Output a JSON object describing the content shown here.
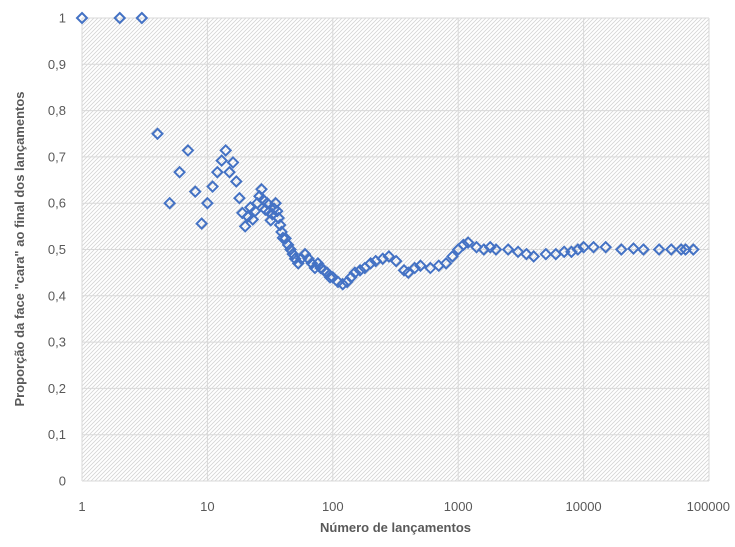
{
  "chart_data": {
    "type": "scatter",
    "xlabel": "Número de lançamentos",
    "ylabel": "Proporção da face \"cara\" ao final dos lançamentos",
    "xscale": "log",
    "xlim": [
      1,
      100000
    ],
    "ylim": [
      0,
      1
    ],
    "x_ticks": [
      "1",
      "10",
      "100",
      "1000",
      "10000",
      "100000"
    ],
    "y_ticks": [
      "0",
      "0,1",
      "0,2",
      "0,3",
      "0,4",
      "0,5",
      "0,6",
      "0,7",
      "0,8",
      "0,9",
      "1"
    ],
    "grid": true,
    "marker": "diamond-open",
    "colors": {
      "marker": "#4472C4",
      "grid": "#d9d9d9",
      "hatch": "#d4d4d4"
    },
    "series": [
      {
        "points": [
          [
            1,
            1
          ],
          [
            2,
            1
          ],
          [
            3,
            1
          ],
          [
            4,
            0.75
          ],
          [
            5,
            0.6
          ],
          [
            6,
            0.667
          ],
          [
            7,
            0.714
          ],
          [
            8,
            0.625
          ],
          [
            9,
            0.556
          ],
          [
            10,
            0.6
          ],
          [
            11,
            0.636
          ],
          [
            12,
            0.667
          ],
          [
            13,
            0.692
          ],
          [
            14,
            0.714
          ],
          [
            15,
            0.667
          ],
          [
            16,
            0.688
          ],
          [
            17,
            0.647
          ],
          [
            18,
            0.611
          ],
          [
            19,
            0.579
          ],
          [
            20,
            0.55
          ],
          [
            21,
            0.571
          ],
          [
            22,
            0.591
          ],
          [
            23,
            0.565
          ],
          [
            24,
            0.583
          ],
          [
            25,
            0.6
          ],
          [
            26,
            0.615
          ],
          [
            27,
            0.63
          ],
          [
            28,
            0.607
          ],
          [
            29,
            0.586
          ],
          [
            30,
            0.6
          ],
          [
            31,
            0.581
          ],
          [
            32,
            0.563
          ],
          [
            33,
            0.576
          ],
          [
            34,
            0.588
          ],
          [
            35,
            0.6
          ],
          [
            36,
            0.583
          ],
          [
            37,
            0.568
          ],
          [
            38,
            0.553
          ],
          [
            39,
            0.538
          ],
          [
            40,
            0.525
          ],
          [
            42,
            0.524
          ],
          [
            44,
            0.51
          ],
          [
            46,
            0.5
          ],
          [
            48,
            0.49
          ],
          [
            50,
            0.48
          ],
          [
            53,
            0.47
          ],
          [
            56,
            0.48
          ],
          [
            60,
            0.49
          ],
          [
            64,
            0.48
          ],
          [
            68,
            0.47
          ],
          [
            72,
            0.46
          ],
          [
            76,
            0.47
          ],
          [
            80,
            0.46
          ],
          [
            85,
            0.455
          ],
          [
            90,
            0.45
          ],
          [
            95,
            0.44
          ],
          [
            100,
            0.44
          ],
          [
            110,
            0.43
          ],
          [
            120,
            0.425
          ],
          [
            130,
            0.43
          ],
          [
            140,
            0.44
          ],
          [
            150,
            0.45
          ],
          [
            165,
            0.455
          ],
          [
            180,
            0.46
          ],
          [
            200,
            0.47
          ],
          [
            220,
            0.475
          ],
          [
            250,
            0.48
          ],
          [
            280,
            0.485
          ],
          [
            320,
            0.475
          ],
          [
            370,
            0.455
          ],
          [
            400,
            0.45
          ],
          [
            450,
            0.46
          ],
          [
            500,
            0.465
          ],
          [
            600,
            0.46
          ],
          [
            700,
            0.465
          ],
          [
            800,
            0.47
          ],
          [
            900,
            0.485
          ],
          [
            1000,
            0.5
          ],
          [
            1100,
            0.51
          ],
          [
            1200,
            0.515
          ],
          [
            1400,
            0.505
          ],
          [
            1600,
            0.5
          ],
          [
            1800,
            0.505
          ],
          [
            2000,
            0.5
          ],
          [
            2500,
            0.5
          ],
          [
            3000,
            0.495
          ],
          [
            3500,
            0.49
          ],
          [
            4000,
            0.485
          ],
          [
            5000,
            0.49
          ],
          [
            6000,
            0.49
          ],
          [
            7000,
            0.495
          ],
          [
            8000,
            0.495
          ],
          [
            9000,
            0.5
          ],
          [
            10000,
            0.505
          ],
          [
            12000,
            0.505
          ],
          [
            15000,
            0.505
          ],
          [
            20000,
            0.5
          ],
          [
            25000,
            0.502
          ],
          [
            30000,
            0.5
          ],
          [
            40000,
            0.5
          ],
          [
            50000,
            0.5
          ],
          [
            60000,
            0.5
          ],
          [
            65000,
            0.5
          ],
          [
            75000,
            0.5
          ]
        ]
      }
    ]
  }
}
